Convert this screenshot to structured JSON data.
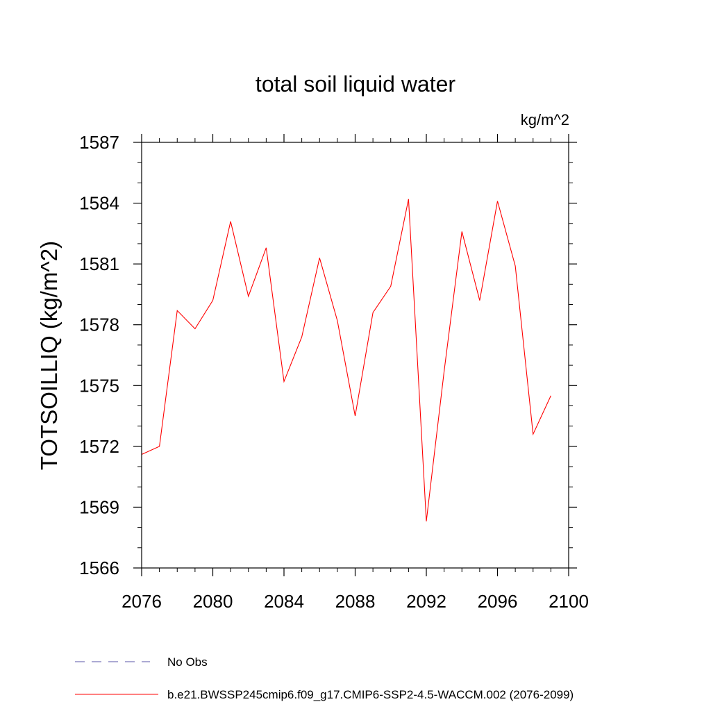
{
  "chart_data": {
    "type": "line",
    "title": "total soil liquid water",
    "units": "kg/m^2",
    "xlabel": "",
    "ylabel": "TOTSOILLIQ  (kg/m^2)",
    "xlim": [
      2076,
      2100
    ],
    "ylim": [
      1566,
      1587
    ],
    "xticks": [
      2076,
      2080,
      2084,
      2088,
      2092,
      2096,
      2100
    ],
    "yticks": [
      1566,
      1569,
      1572,
      1575,
      1578,
      1581,
      1584,
      1587
    ],
    "x": [
      2076,
      2077,
      2078,
      2079,
      2080,
      2081,
      2082,
      2083,
      2084,
      2085,
      2086,
      2087,
      2088,
      2089,
      2090,
      2091,
      2092,
      2093,
      2094,
      2095,
      2096,
      2097,
      2098,
      2099
    ],
    "series": [
      {
        "name": "b.e21.BWSSP245cmip6.f09_g17.CMIP6-SSP2-4.5-WACCM.002 (2076-2099)",
        "color": "#ff0000",
        "values": [
          1571.6,
          1572.0,
          1578.7,
          1577.8,
          1579.2,
          1583.1,
          1579.4,
          1581.8,
          1575.2,
          1577.4,
          1581.3,
          1578.2,
          1573.5,
          1578.6,
          1579.9,
          1584.2,
          1568.3,
          1575.7,
          1582.6,
          1579.2,
          1584.1,
          1580.9,
          1572.6,
          1574.5
        ]
      }
    ],
    "legend": [
      {
        "label": "No Obs",
        "style": "dashed",
        "color": "#5a55a8"
      },
      {
        "label": "b.e21.BWSSP245cmip6.f09_g17.CMIP6-SSP2-4.5-WACCM.002 (2076-2099)",
        "style": "solid",
        "color": "#ff0000"
      }
    ],
    "legend_position": "bottom-left"
  }
}
